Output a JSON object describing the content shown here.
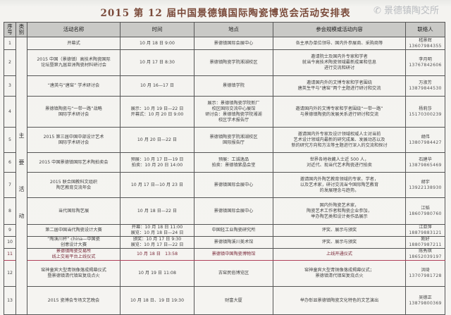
{
  "title": "2015 第 12 届中国景德镇国际陶瓷博览会活动安排表",
  "headers": [
    "序号",
    "类别",
    "活动名称",
    "时间",
    "地点",
    "参会规模或活动内容",
    "联络人"
  ],
  "category": "主\n要\n活\n动",
  "rows": [
    {
      "no": "1",
      "name": "开幕式",
      "time": "10 月 18 日 9:00",
      "place": "景德镇国际会展中心",
      "content": "各主承办单位领导、国内外参展商、采购商等",
      "contact": "嵇景辉",
      "phone": "13607984355"
    },
    {
      "no": "2",
      "name": "2015 中国（景德镇）高技术陶瓷国际\n论坛暨第九届亚洲陶瓷材料研讨会",
      "time": "10 月 17 日 8:30",
      "place": "景德镇陶瓷学院湘湖校区",
      "content": "邀请院士及国内外专家和学者\n就当今高技术陶瓷领域最新成果和信息\n进行交流和研讨",
      "contact": "李月明",
      "phone": "13767842606"
    },
    {
      "no": "3",
      "name": "“唐英与“唐窑” 学术研讨会",
      "time": "10 月 16—17 日",
      "place": "景德镇学院",
      "content": "邀请国内外的文博专家和学者围绕\n唐英生平与“唐窑”两个主题进行研讨和交流",
      "contact": "万淑芳",
      "phone": "13879844530"
    },
    {
      "no": "4",
      "name": "景德镇陶瓷与“一带一路”战略\n国际学术研讨会",
      "time": "展示：10 月 19 日—22 日\n开幕式：10 月 20 日 9:00",
      "place": "展示：景德镇陶瓷学院新厂\n校区国际交流中心展馆\n研讨会：景德镇陶瓷学院湘湖\n校区学术报告厅",
      "content": "邀请国内外的文博专家和学者围绕“一带一路”\n与景德镇陶瓷的发展关系进行研讨和交流",
      "contact": "杨莉莎",
      "phone": "15170300239"
    },
    {
      "no": "5",
      "name": "2015 第三届中国中部设计艺术\n国际学术研讨会",
      "time": "10 月 20 日—22 日",
      "place": "景德镇陶瓷学院湘湖校区\n国际报告厅",
      "content": "邀请国内外专家及设计领域权威人士对当前\n艺术设计领域内最新的研究成果、发展动态以及\n新的研究方向和方法等主题进行深入的交流和探讨",
      "contact": "胡伟",
      "phone": "13807984427"
    },
    {
      "no": "6",
      "name": "2015 中国景德镇国际艺术陶拍卖会",
      "time": "预展：10 月 17 日—19 日\n拍卖：10 月 20 日 14:00",
      "place": "预展：工诚逸品\n拍卖：景德镇紫晶会堂",
      "content": "世界各地收藏人士近 500 人，\n对近代、现当代艺术陶瓷进行拍卖",
      "contact": "石建华",
      "phone": "13879865469"
    },
    {
      "no": "7",
      "name": "2015 联合国教科文组织\n陶艺教育交流年会",
      "time": "10 月 17 日—10 月 23 日",
      "place": "景德镇国际会展中心",
      "content": "邀请国内外陶艺教育领域的专家、学者，\n以及艺术家，研讨交流当今国际陶艺教育\n的发展理念与趋势。",
      "contact": "胡宇",
      "phone": "13922138930"
    },
    {
      "no": "8",
      "name": "当代国际陶艺展",
      "time": "10 月 18 日—22 日",
      "place": "景德镇国际会展中心",
      "content": "国内外陶瓷艺术家，\n陶瓷艺术工作者和陶瓷企业参加，\n举办陶艺类和设计类作品展示",
      "contact": "江韬",
      "phone": "18607980760"
    },
    {
      "no": "9",
      "name": "第二届中国当代陶瓷设计大赛",
      "time": "开幕：10 月 18 日 11:00\n展览：10 月 18 日—24 日",
      "place": "中国轻工业陶瓷研究所",
      "content": "评奖、展示与颁奖",
      "contact": "江亚萍",
      "phone": "18879883121"
    },
    {
      "no": "10",
      "name": "“陶溪川杯” china—中国瓷\n创意设计大赛",
      "time": "颁奖：10 月 17 日 9:30\n展览：10 月 17 日—22 日",
      "place": "景德镇陶溪川美术馆",
      "content": "评奖、展示与颁奖",
      "contact": "刚好",
      "phone": "18807987211"
    },
    {
      "no": "11",
      "name": "景德镇陶瓷交易所\n线上交易平台上线仪式",
      "time": "10 月 18 日　13:58",
      "place": "景德镇中国陶瓷博物馆",
      "content": "上线开通仪式",
      "contact": "陈秀琪",
      "phone": "18652039197"
    },
    {
      "no": "12",
      "name": "窑神童宾大型青铜像落成揭幕仪式\n暨景德镇清代镇窑复烧点火",
      "time": "10 月 19 日 11:08",
      "place": "古窑民俗博览区",
      "content": "窑神童宾大型青铜像落成揭幕仪式；\n景德镇清代镇窑复烧点火",
      "contact": "洪琦",
      "phone": "13707981728"
    },
    {
      "no": "13",
      "name": "2015 瓷博会专场文艺晚会",
      "time": "10 月 18 日、19 日 19:30",
      "place": "财富大厦",
      "content": "举办彰显景德镇陶瓷文化特色的文艺演出",
      "contact": "吴德正",
      "phone": "13879800369"
    }
  ],
  "watermark": "景德镇陶交所"
}
